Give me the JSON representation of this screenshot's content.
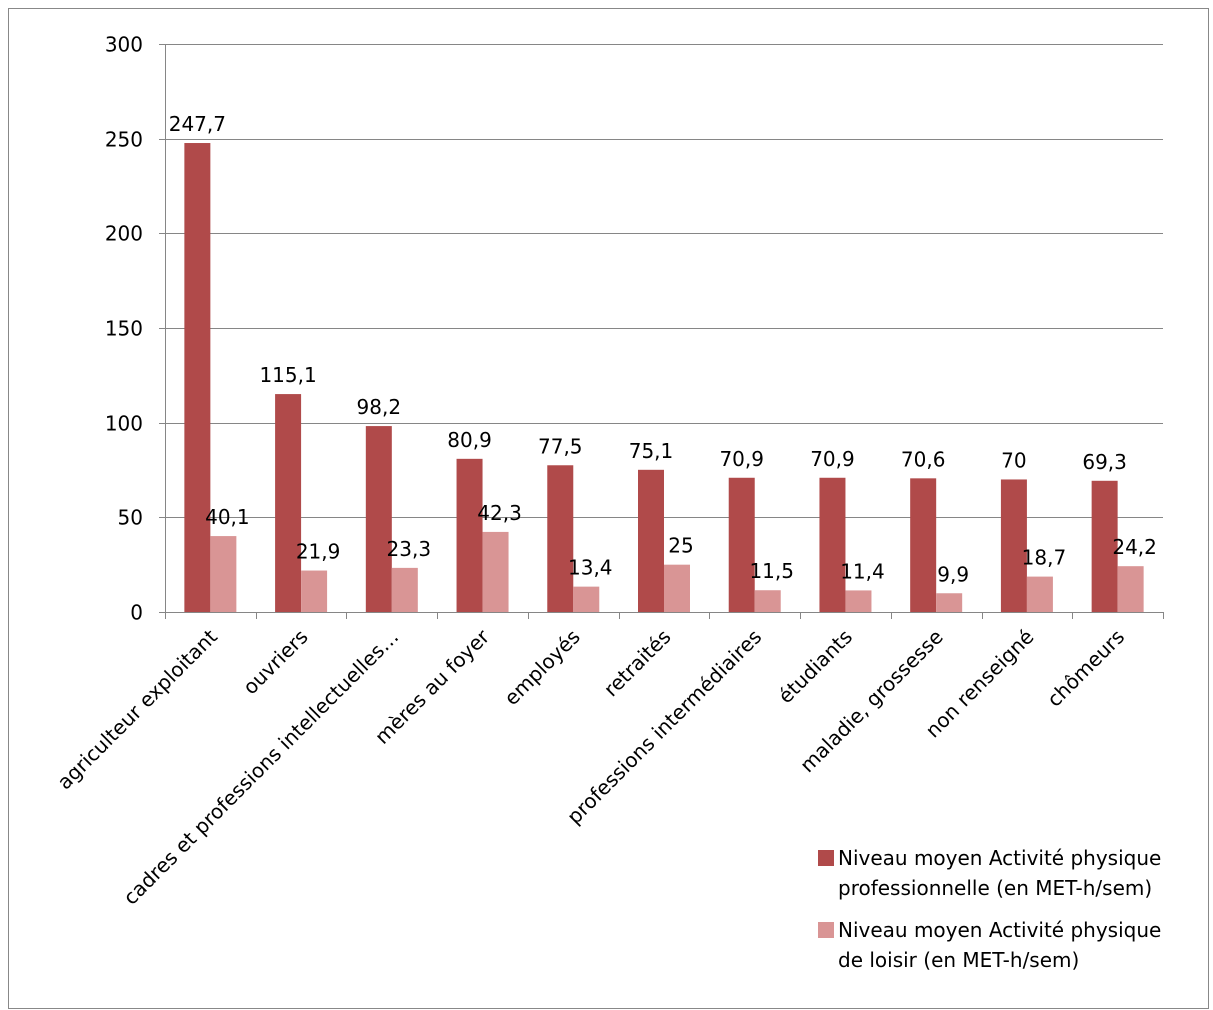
{
  "chart_data": {
    "type": "bar",
    "title": "",
    "xlabel": "",
    "ylabel": "",
    "ylim": [
      0,
      300
    ],
    "yticks": [
      0,
      50,
      100,
      150,
      200,
      250,
      300
    ],
    "grid": true,
    "legend_position": "bottom-right",
    "categories": [
      "agriculteur exploitant",
      "ouvriers",
      "cadres et professions intellectuelles…",
      "mères au foyer",
      "employés",
      "retraités",
      "professions intermédiaires",
      "étudiants",
      "maladie, grossesse",
      "non renseigné",
      "chômeurs"
    ],
    "series": [
      {
        "name": "Niveau moyen Activité physique professionnelle (en MET-h/sem)",
        "color": "#b04a4a",
        "values": [
          247.7,
          115.1,
          98.2,
          80.9,
          77.5,
          75.1,
          70.9,
          70.9,
          70.6,
          70,
          69.3
        ],
        "labels": [
          "247,7",
          "115,1",
          "98,2",
          "80,9",
          "77,5",
          "75,1",
          "70,9",
          "70,9",
          "70,6",
          "70",
          "69,3"
        ]
      },
      {
        "name": "Niveau moyen Activité physique de loisir (en MET-h/sem)",
        "color": "#d99595",
        "values": [
          40.1,
          21.9,
          23.3,
          42.3,
          13.4,
          25,
          11.5,
          11.4,
          9.9,
          18.7,
          24.2
        ],
        "labels": [
          "40,1",
          "21,9",
          "23,3",
          "42,3",
          "13,4",
          "25",
          "11,5",
          "11,4",
          "9,9",
          "18,7",
          "24,2"
        ]
      }
    ]
  },
  "legend": {
    "items": [
      {
        "line1": "Niveau moyen Activité physique",
        "line2": "professionnelle (en MET-h/sem)",
        "color": "#b04a4a"
      },
      {
        "line1": "Niveau moyen Activité physique",
        "line2": "de loisir (en MET-h/sem)",
        "color": "#d99595"
      }
    ]
  }
}
